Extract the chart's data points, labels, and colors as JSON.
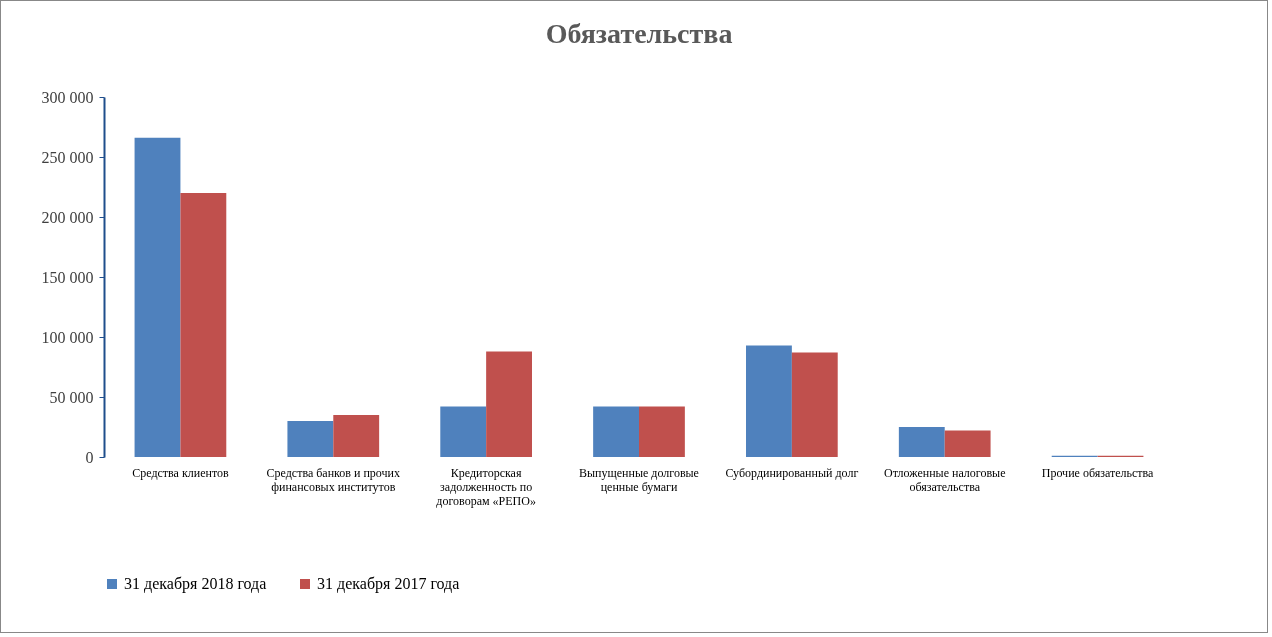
{
  "chart_data": {
    "type": "bar",
    "title": "Обязательства",
    "categories": [
      "Средства клиентов",
      "Средства банков и прочих финансовых институтов",
      "Кредиторская задолженность по договорам «РЕПО»",
      "Выпущенные долговые ценные бумаги",
      "Субординированный долг",
      "Отложенные налоговые обязательства",
      "Прочие обязательства"
    ],
    "series": [
      {
        "name": "31 декабря 2018 года",
        "color": "#4f81bd",
        "values": [
          266000,
          30000,
          42000,
          42000,
          93000,
          25000,
          1000
        ]
      },
      {
        "name": "31 декабря 2017 года",
        "color": "#c0504d",
        "values": [
          220000,
          35000,
          88000,
          42000,
          87000,
          22000,
          1000
        ]
      }
    ],
    "ylim": [
      0,
      300000
    ],
    "yticks": [
      {
        "value": 0,
        "label": "0"
      },
      {
        "value": 50000,
        "label": "50 000"
      },
      {
        "value": 100000,
        "label": "100 000"
      },
      {
        "value": 150000,
        "label": "150 000"
      },
      {
        "value": 200000,
        "label": "200 000"
      },
      {
        "value": 250000,
        "label": "250 000"
      },
      {
        "value": 300000,
        "label": "300 000"
      }
    ],
    "grid": false,
    "legend": "bottom"
  }
}
